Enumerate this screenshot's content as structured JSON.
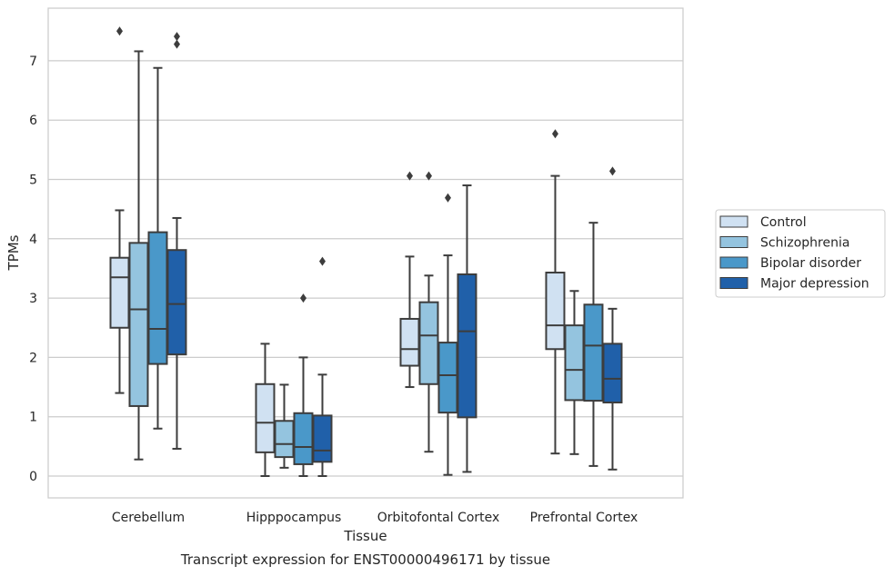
{
  "chart_data": {
    "type": "boxplot",
    "caption": "Transcript expression for ENST00000496171 by tissue",
    "xlabel": "Tissue",
    "ylabel": "TPMs",
    "ylim": [
      -0.35,
      7.9
    ],
    "yticks": [
      0,
      1,
      2,
      3,
      4,
      5,
      6,
      7
    ],
    "grid": true,
    "legend_position": "right",
    "categories": [
      "Cerebellum",
      "Hipppocampus",
      "Orbitofontal Cortex",
      "Prefrontal Cortex"
    ],
    "series": [
      {
        "name": "Control",
        "color": "#d0e1f2",
        "boxes": [
          {
            "whisker_low": 1.4,
            "q1": 2.5,
            "median": 3.35,
            "q3": 3.68,
            "whisker_high": 4.48,
            "outliers": [
              7.5
            ]
          },
          {
            "whisker_low": 0.0,
            "q1": 0.4,
            "median": 0.9,
            "q3": 1.55,
            "whisker_high": 2.23,
            "outliers": []
          },
          {
            "whisker_low": 1.5,
            "q1": 1.86,
            "median": 2.14,
            "q3": 2.65,
            "whisker_high": 3.7,
            "outliers": [
              5.06
            ]
          },
          {
            "whisker_low": 0.38,
            "q1": 2.14,
            "median": 2.54,
            "q3": 3.43,
            "whisker_high": 5.06,
            "outliers": [
              5.77
            ]
          }
        ]
      },
      {
        "name": "Schizophrenia",
        "color": "#94c4df",
        "boxes": [
          {
            "whisker_low": 0.28,
            "q1": 1.18,
            "median": 2.81,
            "q3": 3.93,
            "whisker_high": 7.16,
            "outliers": []
          },
          {
            "whisker_low": 0.14,
            "q1": 0.32,
            "median": 0.54,
            "q3": 0.93,
            "whisker_high": 1.54,
            "outliers": []
          },
          {
            "whisker_low": 0.41,
            "q1": 1.55,
            "median": 2.37,
            "q3": 2.93,
            "whisker_high": 3.38,
            "outliers": [
              5.06
            ]
          },
          {
            "whisker_low": 0.37,
            "q1": 1.28,
            "median": 1.79,
            "q3": 2.54,
            "whisker_high": 3.12,
            "outliers": []
          }
        ]
      },
      {
        "name": "Bipolar disorder",
        "color": "#4a98c9",
        "boxes": [
          {
            "whisker_low": 0.8,
            "q1": 1.89,
            "median": 2.48,
            "q3": 4.11,
            "whisker_high": 6.88,
            "outliers": []
          },
          {
            "whisker_low": 0.0,
            "q1": 0.2,
            "median": 0.49,
            "q3": 1.06,
            "whisker_high": 2.0,
            "outliers": [
              3.0
            ]
          },
          {
            "whisker_low": 0.02,
            "q1": 1.07,
            "median": 1.7,
            "q3": 2.25,
            "whisker_high": 3.72,
            "outliers": [
              4.69
            ]
          },
          {
            "whisker_low": 0.17,
            "q1": 1.27,
            "median": 2.2,
            "q3": 2.89,
            "whisker_high": 4.27,
            "outliers": []
          }
        ]
      },
      {
        "name": "Major depression",
        "color": "#2060a9",
        "boxes": [
          {
            "whisker_low": 0.46,
            "q1": 2.05,
            "median": 2.9,
            "q3": 3.81,
            "whisker_high": 4.35,
            "outliers": [
              7.28,
              7.41
            ]
          },
          {
            "whisker_low": 0.0,
            "q1": 0.24,
            "median": 0.43,
            "q3": 1.02,
            "whisker_high": 1.71,
            "outliers": [
              3.62
            ]
          },
          {
            "whisker_low": 0.07,
            "q1": 0.99,
            "median": 2.44,
            "q3": 3.4,
            "whisker_high": 4.9,
            "outliers": []
          },
          {
            "whisker_low": 0.11,
            "q1": 1.24,
            "median": 1.64,
            "q3": 2.23,
            "whisker_high": 2.82,
            "outliers": [
              5.14
            ]
          }
        ]
      }
    ]
  }
}
